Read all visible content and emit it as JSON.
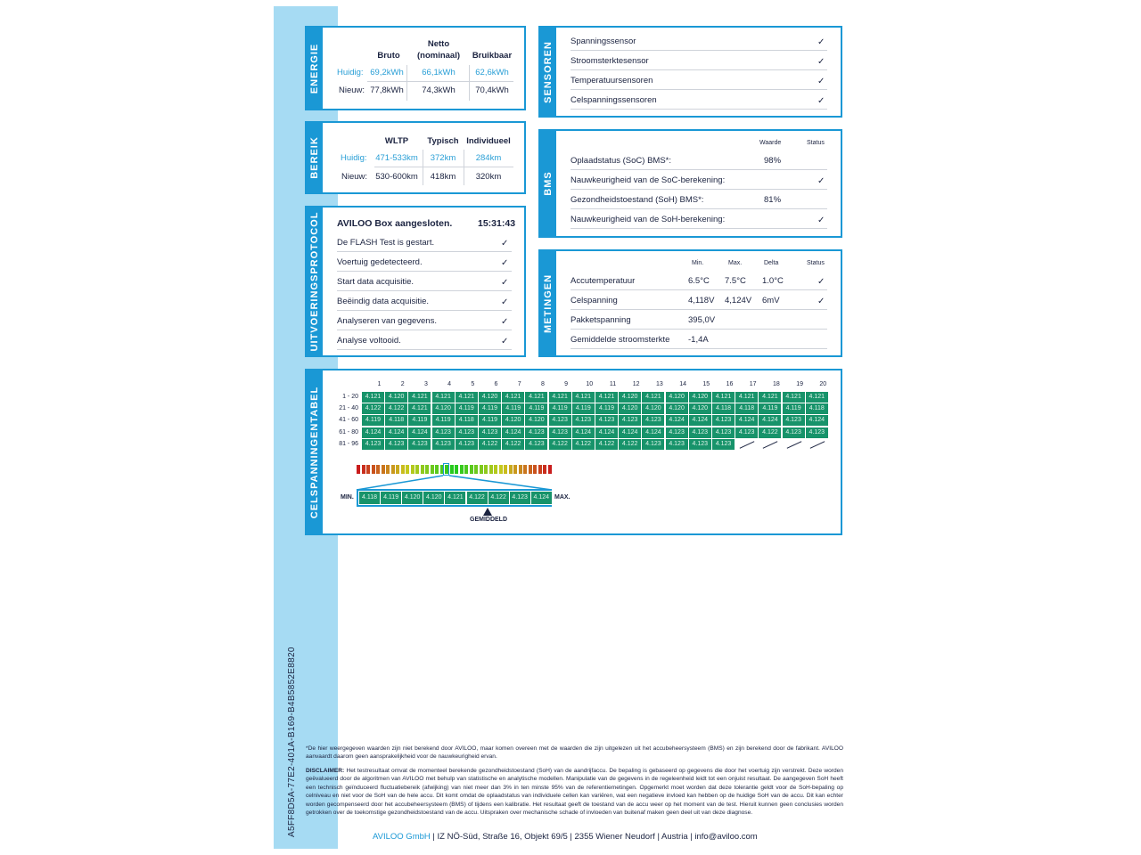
{
  "document_id": "A5FF8D5A-77E2-401A-B169-B4B5852E8820",
  "energie": {
    "label": "ENERGIE",
    "headers": [
      "Bruto",
      "Netto\n(nominaal)",
      "Bruikbaar"
    ],
    "header_netto_1": "Netto",
    "header_netto_2": "(nominaal)",
    "rows": [
      {
        "label": "Huidig:",
        "values": [
          "69,2kWh",
          "66,1kWh",
          "62,6kWh"
        ]
      },
      {
        "label": "Nieuw:",
        "values": [
          "77,8kWh",
          "74,3kWh",
          "70,4kWh"
        ]
      }
    ]
  },
  "bereik": {
    "label": "BEREIK",
    "headers": [
      "WLTP",
      "Typisch",
      "Individueel"
    ],
    "rows": [
      {
        "label": "Huidig:",
        "values": [
          "471-533km",
          "372km",
          "284km"
        ]
      },
      {
        "label": "Nieuw:",
        "values": [
          "530-600km",
          "418km",
          "320km"
        ]
      }
    ]
  },
  "protocol": {
    "label": "UITVOERINGSPROTOCOL",
    "title": "AVILOO Box aangesloten.",
    "time": "15:31:43",
    "steps": [
      "De FLASH Test is gestart.",
      "Voertuig gedetecteerd.",
      "Start data acquisitie.",
      "Beëindig data acquisitie.",
      "Analyseren van gegevens.",
      "Analyse voltooid."
    ]
  },
  "sensoren": {
    "label": "SENSOREN",
    "items": [
      "Spanningssensor",
      "Stroomsterktesensor",
      "Temperatuursensoren",
      "Celspanningssensoren"
    ]
  },
  "bms": {
    "label": "BMS",
    "headers": [
      "Waarde",
      "Status"
    ],
    "rows": [
      {
        "name": "Oplaadstatus (SoC) BMS*:",
        "value": "98%",
        "check": false
      },
      {
        "name": "Nauwkeurigheid van de SoC-berekening:",
        "value": "",
        "check": true
      },
      {
        "name": "Gezondheidstoestand (SoH) BMS*:",
        "value": "81%",
        "check": false
      },
      {
        "name": "Nauwkeurigheid van de SoH-berekening:",
        "value": "",
        "check": true
      }
    ]
  },
  "metingen": {
    "label": "METINGEN",
    "headers": [
      "Min.",
      "Max.",
      "Delta",
      "Status"
    ],
    "rows": [
      {
        "name": "Accutemperatuur",
        "min": "6.5°C",
        "max": "7.5°C",
        "delta": "1.0°C",
        "check": true
      },
      {
        "name": "Celspanning",
        "min": "4,118V",
        "max": "4,124V",
        "delta": "6mV",
        "check": true
      },
      {
        "name": "Pakketspanning",
        "min": "395,0V",
        "max": "",
        "delta": "",
        "check": false
      },
      {
        "name": "Gemiddelde stroomsterkte",
        "min": "-1,4A",
        "max": "",
        "delta": "",
        "check": false
      }
    ]
  },
  "cells": {
    "label": "CELSPANNINGENTABEL",
    "columns": [
      "1",
      "2",
      "3",
      "4",
      "5",
      "6",
      "7",
      "8",
      "9",
      "10",
      "11",
      "12",
      "13",
      "14",
      "15",
      "16",
      "17",
      "18",
      "19",
      "20"
    ],
    "rows": [
      {
        "label": "1 - 20",
        "values": [
          "4.121",
          "4.120",
          "4.121",
          "4.121",
          "4.121",
          "4.120",
          "4.121",
          "4.121",
          "4.121",
          "4.121",
          "4.121",
          "4.120",
          "4.121",
          "4.120",
          "4.120",
          "4.121",
          "4.121",
          "4.121",
          "4.121",
          "4.121"
        ]
      },
      {
        "label": "21 - 40",
        "values": [
          "4.122",
          "4.122",
          "4.121",
          "4.120",
          "4.119",
          "4.119",
          "4.119",
          "4.119",
          "4.119",
          "4.119",
          "4.119",
          "4.120",
          "4.120",
          "4.120",
          "4.120",
          "4.118",
          "4.118",
          "4.119",
          "4.119",
          "4.118"
        ]
      },
      {
        "label": "41 - 60",
        "values": [
          "4.119",
          "4.118",
          "4.119",
          "4.119",
          "4.118",
          "4.119",
          "4.120",
          "4.120",
          "4.123",
          "4.123",
          "4.123",
          "4.123",
          "4.123",
          "4.124",
          "4.124",
          "4.123",
          "4.124",
          "4.124",
          "4.123",
          "4.124"
        ]
      },
      {
        "label": "61 - 80",
        "values": [
          "4.124",
          "4.124",
          "4.124",
          "4.123",
          "4.123",
          "4.123",
          "4.124",
          "4.123",
          "4.123",
          "4.124",
          "4.124",
          "4.124",
          "4.124",
          "4.123",
          "4.123",
          "4.123",
          "4.123",
          "4.122",
          "4.123",
          "4.123"
        ]
      },
      {
        "label": "81 - 96",
        "values": [
          "4.123",
          "4.123",
          "4.123",
          "4.123",
          "4.123",
          "4.122",
          "4.122",
          "4.123",
          "4.122",
          "4.122",
          "4.122",
          "4.122",
          "4.123",
          "4.123",
          "4.123",
          "4.123"
        ]
      }
    ],
    "scale": {
      "min_label": "MIN.",
      "max_label": "MAX.",
      "avg_label": "GEMIDDELD",
      "values": [
        "4.118",
        "4.119",
        "4.120",
        "4.120",
        "4.121",
        "4.122",
        "4.122",
        "4.123",
        "4.124"
      ]
    }
  },
  "footnote": "*De hier weergegeven waarden zijn niet berekend door AVILOO, maar komen overeen met de waarden die zijn uitgelezen uit het accubeheersysteem (BMS) en zijn berekend door de fabrikant. AVILOO aanvaardt daarom geen aansprakelijkheid voor de nauwkeurigheid ervan.",
  "disclaimer_label": "DISCLAIMER:",
  "disclaimer": "Het testresultaat omvat de momenteel berekende gezondheidstoestand (SoH) van de aandrijfaccu. De bepaling is gebaseerd op gegevens die door het voertuig zijn verstrekt. Deze worden geëvalueerd door de algoritmen van AVILOO met behulp van statistische en analytische modellen. Manipulatie van de gegevens in de regeleenheid leidt tot een onjuist resultaat. De aangegeven SoH heeft een technisch geïnduceerd fluctuatiebereik (afwijking) van niet meer dan 3% in ten minste 95% van de referentiemetingen. Opgemerkt moet worden dat deze tolerantie geldt voor de SoH-bepaling op celniveau en niet voor de SoH van de hele accu. Dit komt omdat de oplaadstatus van individuele cellen kan variëren, wat een negatieve invloed kan hebben op de huidige SoH van de accu. Dit kan echter worden gecompenseerd door het accubeheersysteem (BMS) of tijdens een kalibratie. Het resultaat geeft de toestand van de accu weer op het moment van de test. Hieruit kunnen geen conclusies worden getrokken over de toekomstige gezondheidstoestand van de accu. Uitspraken over mechanische schade of invloeden van buitenaf maken geen deel uit van deze diagnose.",
  "footer": {
    "company": "AVILOO GmbH",
    "address": " | IZ NÖ-Süd, Straße 16, Objekt 69/5 | 2355 Wiener Neudorf | Austria | info@aviloo.com"
  },
  "colors": {
    "brand_blue": "#1a98d5",
    "cell_green": "#17936a",
    "stripe": "#a6dbf3"
  }
}
